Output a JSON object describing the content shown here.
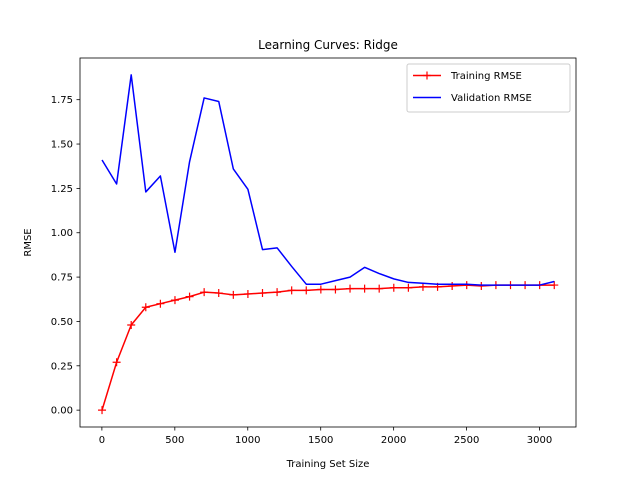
{
  "chart_data": {
    "type": "line",
    "title": "Learning Curves: Ridge",
    "xlabel": "Training Set Size",
    "ylabel": "RMSE",
    "xlim": [
      -150,
      3250
    ],
    "ylim": [
      -0.095,
      1.985
    ],
    "xticks": [
      0,
      500,
      1000,
      1500,
      2000,
      2500,
      3000
    ],
    "xtick_labels": [
      "0",
      "500",
      "1000",
      "1500",
      "2000",
      "2500",
      "3000"
    ],
    "yticks": [
      0.0,
      0.25,
      0.5,
      0.75,
      1.0,
      1.25,
      1.5,
      1.75
    ],
    "ytick_labels": [
      "0.00",
      "0.25",
      "0.50",
      "0.75",
      "1.00",
      "1.25",
      "1.50",
      "1.75"
    ],
    "grid": false,
    "legend_position": "top-right",
    "x": [
      1,
      101,
      201,
      301,
      401,
      501,
      601,
      701,
      801,
      901,
      1001,
      1101,
      1201,
      1301,
      1401,
      1501,
      1601,
      1701,
      1801,
      1901,
      2001,
      2101,
      2201,
      2301,
      2401,
      2501,
      2601,
      2701,
      2801,
      2901,
      3001,
      3101
    ],
    "series": [
      {
        "name": "Training RMSE",
        "color": "#ff0000",
        "marker": "+",
        "values": [
          0.0,
          0.27,
          0.48,
          0.58,
          0.6,
          0.62,
          0.64,
          0.665,
          0.66,
          0.65,
          0.655,
          0.66,
          0.665,
          0.675,
          0.675,
          0.68,
          0.68,
          0.685,
          0.685,
          0.685,
          0.69,
          0.69,
          0.695,
          0.695,
          0.7,
          0.705,
          0.7,
          0.705,
          0.705,
          0.705,
          0.705,
          0.705
        ]
      },
      {
        "name": "Validation RMSE",
        "color": "#0000ff",
        "marker": "",
        "values": [
          1.41,
          1.275,
          1.89,
          1.23,
          1.32,
          0.89,
          1.4,
          1.76,
          1.74,
          1.36,
          1.245,
          0.905,
          0.915,
          0.81,
          0.71,
          0.71,
          0.73,
          0.75,
          0.805,
          0.77,
          0.74,
          0.72,
          0.715,
          0.71,
          0.71,
          0.71,
          0.705,
          0.705,
          0.705,
          0.705,
          0.705,
          0.725
        ]
      }
    ]
  }
}
